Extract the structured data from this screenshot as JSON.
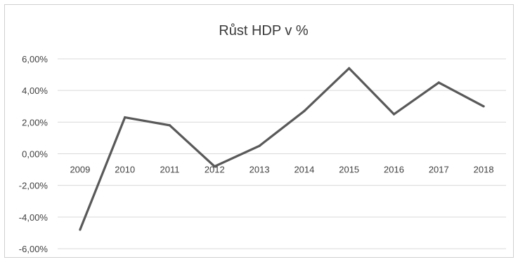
{
  "chart_data": {
    "type": "line",
    "title": "Růst HDP v %",
    "xlabel": "",
    "ylabel": "",
    "categories": [
      "2009",
      "2010",
      "2011",
      "2012",
      "2013",
      "2014",
      "2015",
      "2016",
      "2017",
      "2018"
    ],
    "series": [
      {
        "values": [
          -4.8,
          2.3,
          1.8,
          -0.8,
          0.5,
          2.7,
          5.4,
          2.5,
          4.5,
          3.0
        ]
      }
    ],
    "ylim": [
      -6,
      6
    ],
    "yticks": [
      6,
      4,
      2,
      0,
      -2,
      -4,
      -6
    ],
    "ytick_labels": [
      "6,00%",
      "4,00%",
      "2,00%",
      "0,00%",
      "-2,00%",
      "-4,00%",
      "-6,00%"
    ],
    "grid": true,
    "legend": "none",
    "colors": {
      "line": "#595959",
      "grid": "#d9d9d9",
      "text": "#404040"
    }
  }
}
